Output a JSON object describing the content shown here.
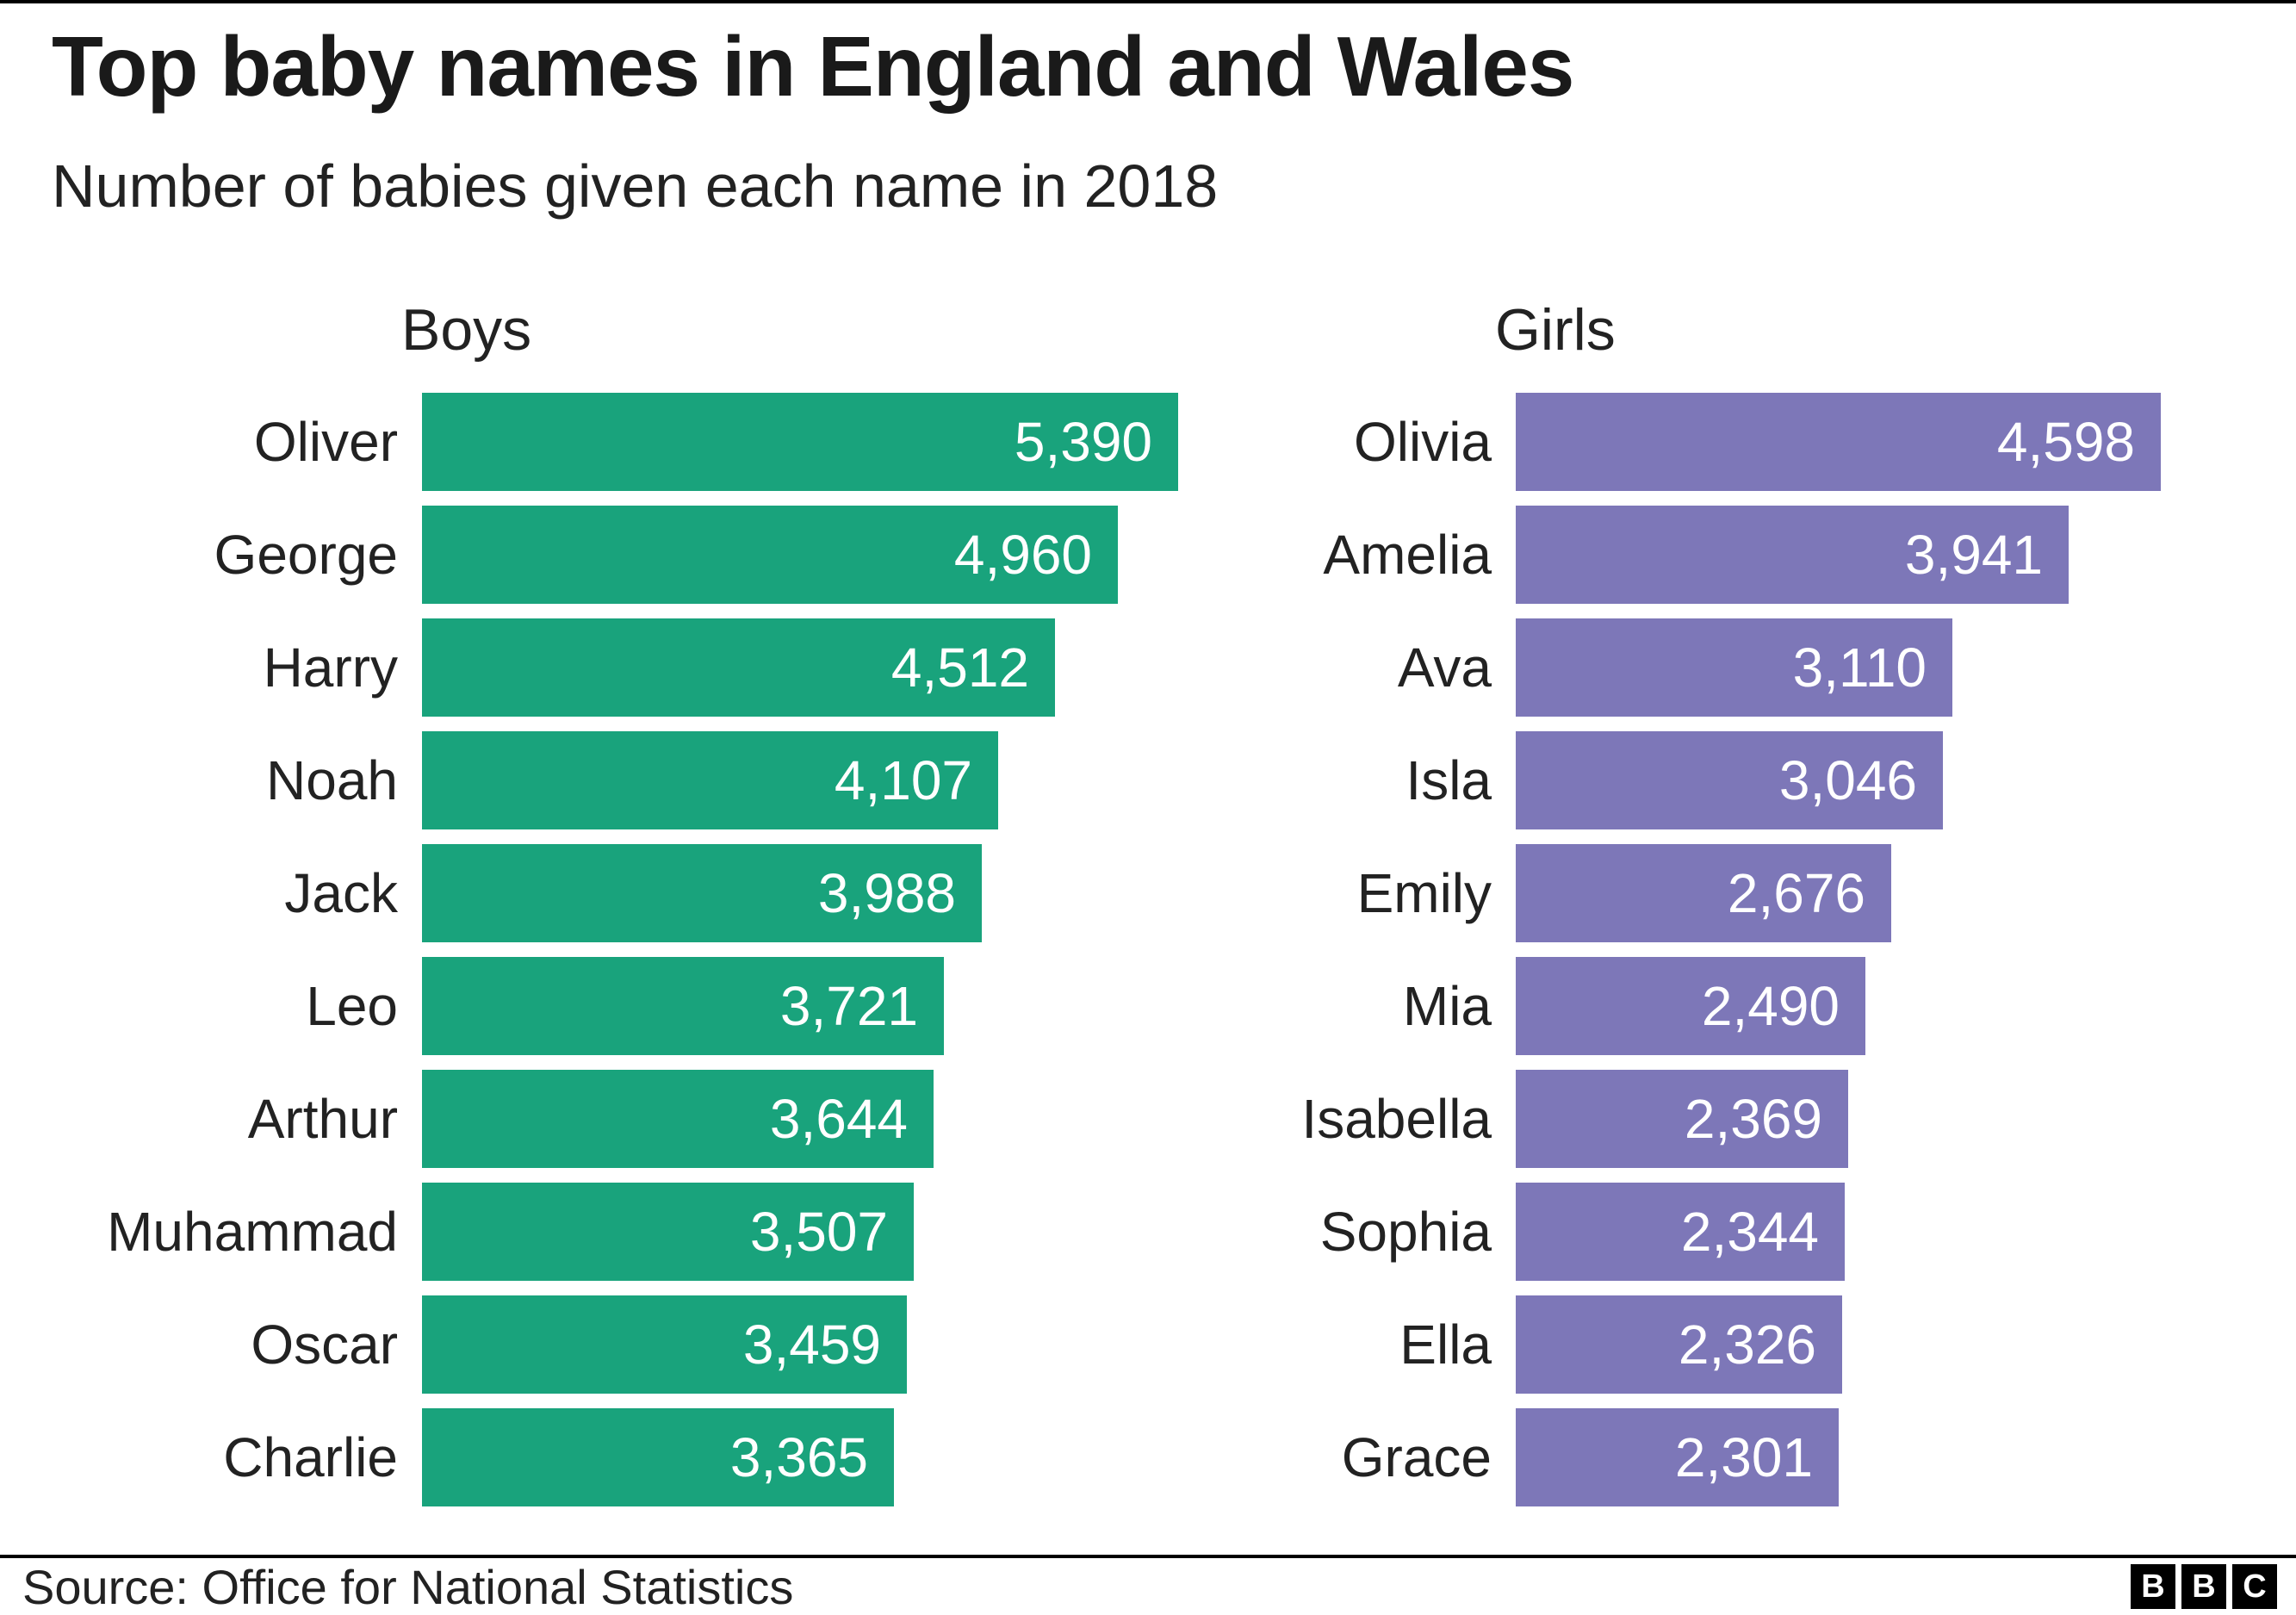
{
  "page": {
    "title": "Top baby names in England and Wales",
    "subtitle": "Number of babies given each name in 2018"
  },
  "footer": {
    "source": "Source: Office for National Statistics",
    "logo_letters": [
      "B",
      "B",
      "C"
    ]
  },
  "colors": {
    "boys_bar": "#19A37C",
    "girls_bar": "#7D77B8",
    "text": "#222222",
    "value_text": "#FFFFFF",
    "rule": "#000000"
  },
  "chart_data": {
    "type": "bar",
    "orientation": "horizontal",
    "title": "Top baby names in England and Wales",
    "subtitle": "Number of babies given each name in 2018",
    "source": "Office for National Statistics",
    "xmax": 5390,
    "grid": false,
    "legend": false,
    "value_labels": "inside-end, comma-formatted",
    "panels": [
      {
        "label": "Boys",
        "color": "#19A37C",
        "categories": [
          "Oliver",
          "George",
          "Harry",
          "Noah",
          "Jack",
          "Leo",
          "Arthur",
          "Muhammad",
          "Oscar",
          "Charlie"
        ],
        "values": [
          5390,
          4960,
          4512,
          4107,
          3988,
          3721,
          3644,
          3507,
          3459,
          3365
        ]
      },
      {
        "label": "Girls",
        "color": "#7D77B8",
        "categories": [
          "Olivia",
          "Amelia",
          "Ava",
          "Isla",
          "Emily",
          "Mia",
          "Isabella",
          "Sophia",
          "Ella",
          "Grace"
        ],
        "values": [
          4598,
          3941,
          3110,
          3046,
          2676,
          2490,
          2369,
          2344,
          2326,
          2301
        ]
      }
    ]
  }
}
